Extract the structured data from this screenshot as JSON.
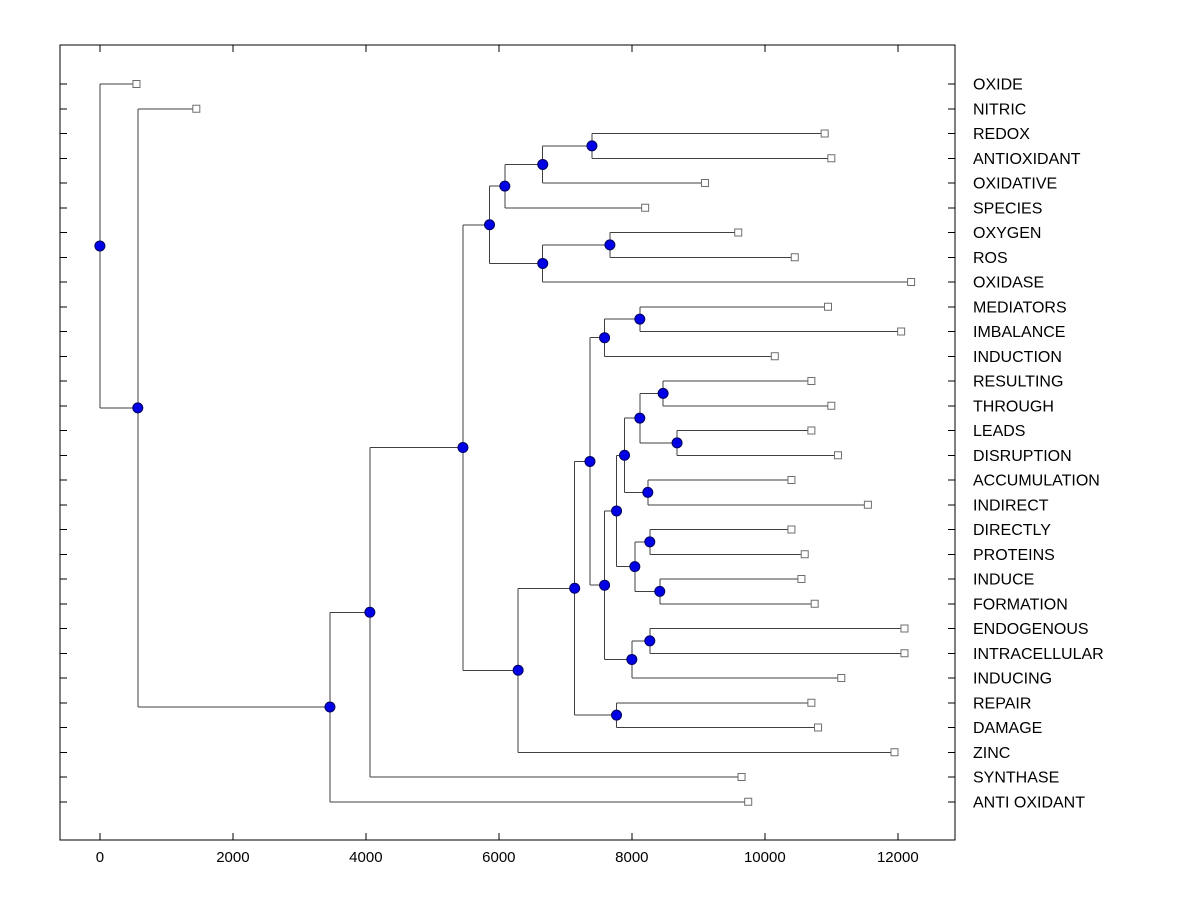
{
  "figure": {
    "background": "#ffffff"
  },
  "chart_data": {
    "type": "dendrogram",
    "title": "",
    "orientation": "root-left-leaves-right",
    "xlabel": "",
    "ylabel": "",
    "grid": false,
    "xlim": [
      -600,
      12860
    ],
    "x_tick_values": [
      0,
      2000,
      4000,
      6000,
      8000,
      10000,
      12000
    ],
    "x_tick_labels": [
      "0",
      "2000",
      "4000",
      "6000",
      "8000",
      "10000",
      "12000"
    ],
    "colors": {
      "internal_node_fill": "#0000e6",
      "internal_node_edge": "#000060",
      "leaf_marker_fill": "#ffffff",
      "leaf_marker_edge": "#6e6e6e",
      "line": "#404040",
      "axis": "#000000",
      "text": "#000000"
    },
    "leaves": [
      {
        "label": "OXIDE",
        "distance": 550
      },
      {
        "label": "NITRIC",
        "distance": 1450
      },
      {
        "label": "REDOX",
        "distance": 10900
      },
      {
        "label": "ANTIOXIDANT",
        "distance": 11000
      },
      {
        "label": "OXIDATIVE",
        "distance": 9100
      },
      {
        "label": "SPECIES",
        "distance": 8200
      },
      {
        "label": "OXYGEN",
        "distance": 9600
      },
      {
        "label": "ROS",
        "distance": 10450
      },
      {
        "label": "OXIDASE",
        "distance": 12200
      },
      {
        "label": "MEDIATORS",
        "distance": 10950
      },
      {
        "label": "IMBALANCE",
        "distance": 12050
      },
      {
        "label": "INDUCTION",
        "distance": 10150
      },
      {
        "label": "RESULTING",
        "distance": 10700
      },
      {
        "label": "THROUGH",
        "distance": 11000
      },
      {
        "label": "LEADS",
        "distance": 10700
      },
      {
        "label": "DISRUPTION",
        "distance": 11100
      },
      {
        "label": "ACCUMULATION",
        "distance": 10400
      },
      {
        "label": "INDIRECT",
        "distance": 11550
      },
      {
        "label": "DIRECTLY",
        "distance": 10400
      },
      {
        "label": "PROTEINS",
        "distance": 10600
      },
      {
        "label": "INDUCE",
        "distance": 10550
      },
      {
        "label": "FORMATION",
        "distance": 10750
      },
      {
        "label": "ENDOGENOUS",
        "distance": 12100
      },
      {
        "label": "INTRACELLULAR",
        "distance": 12100
      },
      {
        "label": "INDUCING",
        "distance": 11150
      },
      {
        "label": "REPAIR",
        "distance": 10700
      },
      {
        "label": "DAMAGE",
        "distance": 10800
      },
      {
        "label": "ZINC",
        "distance": 11950
      },
      {
        "label": "SYNTHASE",
        "distance": 9650
      },
      {
        "label": "ANTI OXIDANT",
        "distance": 9750
      }
    ],
    "internal_nodes": [
      {
        "id": "n1",
        "children": [
          "L3",
          "L4"
        ],
        "distance": 7400
      },
      {
        "id": "n2",
        "children": [
          "n1",
          "L5"
        ],
        "distance": 6660
      },
      {
        "id": "n3",
        "children": [
          "n2",
          "L6"
        ],
        "distance": 6090
      },
      {
        "id": "n4",
        "children": [
          "L7",
          "L8"
        ],
        "distance": 7670
      },
      {
        "id": "n5",
        "children": [
          "n4",
          "L9"
        ],
        "distance": 6660
      },
      {
        "id": "n6",
        "children": [
          "n3",
          "n5"
        ],
        "distance": 5860
      },
      {
        "id": "n7",
        "children": [
          "L10",
          "L11"
        ],
        "distance": 8120
      },
      {
        "id": "n8",
        "children": [
          "n7",
          "L12"
        ],
        "distance": 7590
      },
      {
        "id": "n9",
        "children": [
          "L13",
          "L14"
        ],
        "distance": 8470
      },
      {
        "id": "n10",
        "children": [
          "L15",
          "L16"
        ],
        "distance": 8680
      },
      {
        "id": "n11",
        "children": [
          "n9",
          "n10"
        ],
        "distance": 8120
      },
      {
        "id": "n12",
        "children": [
          "L17",
          "L18"
        ],
        "distance": 8240
      },
      {
        "id": "n13",
        "children": [
          "n11",
          "n12"
        ],
        "distance": 7890
      },
      {
        "id": "n14",
        "children": [
          "L19",
          "L20"
        ],
        "distance": 8270
      },
      {
        "id": "n15",
        "children": [
          "L21",
          "L22"
        ],
        "distance": 8420
      },
      {
        "id": "n16",
        "children": [
          "n14",
          "n15"
        ],
        "distance": 8045
      },
      {
        "id": "n17",
        "children": [
          "n13",
          "n16"
        ],
        "distance": 7770
      },
      {
        "id": "n18",
        "children": [
          "L23",
          "L24"
        ],
        "distance": 8270
      },
      {
        "id": "n19",
        "children": [
          "n18",
          "L25"
        ],
        "distance": 8000
      },
      {
        "id": "n20",
        "children": [
          "n17",
          "n19"
        ],
        "distance": 7590
      },
      {
        "id": "n21",
        "children": [
          "n8",
          "n20"
        ],
        "distance": 7370
      },
      {
        "id": "n22",
        "children": [
          "L26",
          "L27"
        ],
        "distance": 7770
      },
      {
        "id": "n23",
        "children": [
          "n21",
          "n22"
        ],
        "distance": 7140
      },
      {
        "id": "n24",
        "children": [
          "n23",
          "L28"
        ],
        "distance": 6290
      },
      {
        "id": "n25",
        "children": [
          "n6",
          "n24"
        ],
        "distance": 5460
      },
      {
        "id": "n26",
        "children": [
          "n25",
          "L29"
        ],
        "distance": 4060
      },
      {
        "id": "n27",
        "children": [
          "n26",
          "L30"
        ],
        "distance": 3460
      },
      {
        "id": "n28",
        "children": [
          "L2",
          "n27"
        ],
        "distance": 570
      },
      {
        "id": "n29",
        "children": [
          "L1",
          "n28"
        ],
        "distance": 0
      }
    ]
  }
}
